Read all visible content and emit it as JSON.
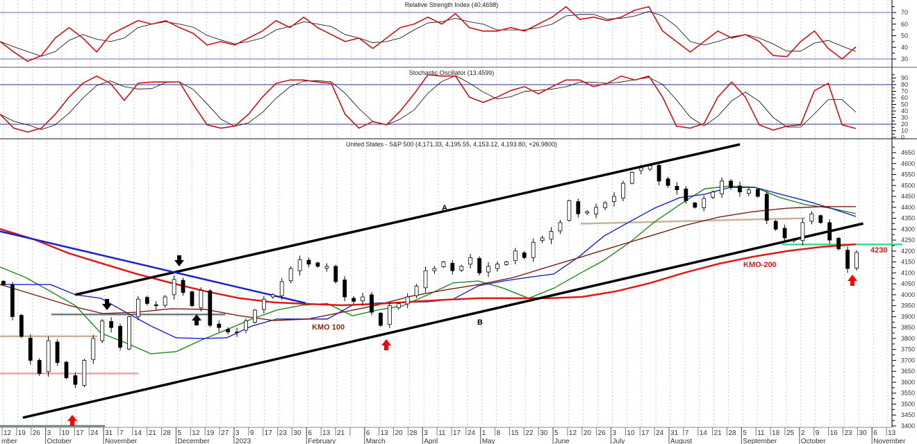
{
  "panels": {
    "rsi_title": "Relative Strength Index (40.4698)",
    "stoch_title": "Stochastic Oscillator (13.4599)",
    "price_title": "United States - S&P 500 (4,171.33, 4,195.55, 4,153.12, 4,193.80, +26.9800)"
  },
  "annotations": {
    "line_a": "A",
    "line_b": "B",
    "kmo100": "KMO 100",
    "kmo200": "KMO-200",
    "level": "4230"
  },
  "colors": {
    "up": "#ffffff",
    "down": "#000000",
    "ma20": "#1a8a1a",
    "ma50": "#1a22c8",
    "kmo100": "#7a1a10",
    "kmo200": "#e01818",
    "rsi": "#d01010",
    "signal": "#000000",
    "ref_rsi": "#8088c8",
    "ref_stoch": "#2a2f8a"
  },
  "chart_data": [
    {
      "type": "line",
      "title": "Relative Strength Index (40.4698)",
      "ylim": [
        20,
        80
      ],
      "yticks": [
        30,
        40,
        50,
        60,
        70
      ],
      "reference_lines": [
        70,
        30
      ],
      "series": [
        {
          "name": "RSI",
          "values": [
            45,
            36,
            28,
            33,
            48,
            57,
            48,
            36,
            51,
            57,
            63,
            60,
            63,
            57,
            52,
            42,
            45,
            42,
            48,
            54,
            63,
            57,
            66,
            57,
            51,
            45,
            48,
            39,
            48,
            57,
            60,
            66,
            60,
            69,
            57,
            54,
            54,
            57,
            54,
            60,
            66,
            75,
            64,
            66,
            63,
            66,
            72,
            75,
            54,
            45,
            36,
            45,
            54,
            48,
            51,
            45,
            33,
            32,
            45,
            54,
            39,
            30,
            40.47
          ]
        }
      ]
    },
    {
      "type": "line",
      "title": "Stochastic Oscillator (13.4599)",
      "ylim": [
        -5,
        100
      ],
      "yticks": [
        0,
        10,
        20,
        30,
        40,
        50,
        60,
        70,
        80,
        90
      ],
      "reference_lines": [
        80,
        20
      ],
      "series": [
        {
          "name": "%K",
          "values": [
            35,
            14,
            8,
            14,
            35,
            61,
            82,
            93,
            82,
            56,
            82,
            84,
            84,
            84,
            50,
            19,
            14,
            17,
            35,
            61,
            82,
            87,
            87,
            84,
            82,
            35,
            14,
            24,
            19,
            40,
            66,
            95,
            93,
            93,
            61,
            53,
            61,
            71,
            77,
            66,
            77,
            87,
            87,
            77,
            82,
            93,
            87,
            93,
            61,
            17,
            14,
            21,
            61,
            84,
            61,
            19,
            11,
            17,
            19,
            71,
            82,
            19,
            13.46
          ]
        }
      ]
    },
    {
      "type": "candlestick",
      "title": "United States - S&P 500",
      "ylim": [
        3375,
        4680
      ],
      "yticks": [
        3400,
        3450,
        3500,
        3550,
        3600,
        3650,
        3700,
        3750,
        3800,
        3850,
        3900,
        3950,
        4000,
        4050,
        4100,
        4150,
        4200,
        4250,
        4300,
        4350,
        4400,
        4450,
        4500,
        4550,
        4600,
        4650
      ],
      "last": {
        "open": 4171.33,
        "high": 4195.55,
        "low": 4153.12,
        "close": 4193.8,
        "change": 26.98
      },
      "closes": [
        4047,
        3900,
        3810,
        3700,
        3640,
        3790,
        3690,
        3620,
        3590,
        3700,
        3800,
        3880,
        3850,
        3760,
        3900,
        3980,
        3960,
        3950,
        3990,
        4070,
        4010,
        3950,
        4020,
        3860,
        3850,
        3830,
        3830,
        3880,
        3930,
        3980,
        4000,
        4060,
        4120,
        4160,
        4140,
        4130,
        4130,
        4060,
        3990,
        3970,
        3990,
        3920,
        3860,
        3950,
        3960,
        3990,
        4040,
        4110,
        4120,
        4150,
        4110,
        4130,
        4170,
        4100,
        4130,
        4140,
        4150,
        4200,
        4170,
        4240,
        4260,
        4290,
        4330,
        4430,
        4370,
        4380,
        4400,
        4420,
        4450,
        4510,
        4560,
        4580,
        4590,
        4520,
        4500,
        4480,
        4430,
        4400,
        4440,
        4470,
        4520,
        4490,
        4470,
        4480,
        4450,
        4340,
        4300,
        4260,
        4250,
        4330,
        4370,
        4330,
        4250,
        4210,
        4120,
        4194
      ],
      "moving_averages": [
        {
          "name": "MA20",
          "color_key": "ma20",
          "values": [
            4127,
            4080,
            4016,
            3950,
            3825,
            3780,
            3730,
            3740,
            3793,
            3840,
            3889,
            3930,
            3952,
            3960,
            3904,
            3930,
            3950,
            4000,
            4054,
            4063,
            4030,
            3984,
            4030,
            4095,
            4158,
            4238,
            4333,
            4412,
            4485,
            4497,
            4491,
            4444,
            4412,
            4396,
            4371
          ]
        },
        {
          "name": "MA50",
          "color_key": "ma50",
          "values": [
            4047,
            4047,
            4047,
            4000,
            3984,
            3920,
            3857,
            3803,
            3800,
            3803,
            3857,
            3889,
            3889,
            3889,
            3952,
            3962,
            3965,
            3968,
            3980,
            4041,
            4063,
            4080,
            4095,
            4174,
            4269,
            4333,
            4396,
            4444,
            4460,
            4491,
            4491,
            4460,
            4430,
            4396,
            4358
          ]
        },
        {
          "name": "KMO 100",
          "color_key": "kmo100",
          "values": [
            4047,
            4000,
            3952,
            3914,
            3920,
            3936,
            3933,
            3904,
            3882,
            3889,
            3920,
            3952,
            3993,
            4022,
            4047,
            4079,
            4127,
            4174,
            4222,
            4269,
            4317,
            4355,
            4380,
            4396,
            4403,
            4403
          ]
        },
        {
          "name": "KMO-200",
          "color_key": "kmo200",
          "values": [
            4301,
            4253,
            4190,
            4142,
            4095,
            4054,
            4016,
            3984,
            3965,
            3958,
            3952,
            3958,
            3968,
            3977,
            3984,
            3984,
            3984,
            3990,
            4016,
            4054,
            4101,
            4142,
            4174,
            4200,
            4219,
            4231
          ]
        }
      ],
      "trendlines": [
        {
          "name": "A",
          "color": "#000000",
          "from": [
            4.94,
            4000
          ],
          "to": [
            50.8,
            4688
          ]
        },
        {
          "name": "B",
          "color": "#000000",
          "from": [
            1.34,
            3438
          ],
          "to": [
            59.3,
            4326
          ]
        },
        {
          "name": "downtrend",
          "color": "#1a22c8",
          "from": [
            -0.3,
            4291
          ],
          "to": [
            20.84,
            3962
          ]
        }
      ],
      "levels": [
        {
          "color": "#6f7f80",
          "from": [
            3.3,
            3910
          ],
          "to": [
            15.3,
            3910
          ]
        },
        {
          "color": "#c8b49a",
          "from": [
            -0.3,
            3810
          ],
          "to": [
            6.5,
            3810
          ]
        },
        {
          "color": "#f0a0a8",
          "from": [
            -0.3,
            3640
          ],
          "to": [
            9.3,
            3640
          ]
        },
        {
          "color": "#6f7f80",
          "from": [
            -0.3,
            3400
          ],
          "to": [
            7,
            3400
          ]
        },
        {
          "color": "#c8b49a",
          "from": [
            39.8,
            4325
          ],
          "to": [
            55.3,
            4350
          ]
        },
        {
          "color": "#40d890",
          "from": [
            53.7,
            4230
          ],
          "to": [
            62,
            4230
          ]
        }
      ]
    }
  ],
  "xaxis": {
    "ticks": [
      "12",
      "19",
      "26",
      "3",
      "10",
      "17",
      "24",
      "31",
      "7",
      "14",
      "21",
      "28",
      "5",
      "12",
      "19",
      "27",
      "3",
      "9",
      "17",
      "23",
      "30",
      "6",
      "13",
      "21",
      "",
      "6",
      "13",
      "20",
      "28",
      "3",
      "11",
      "17",
      "24",
      "1",
      "8",
      "15",
      "22",
      "30",
      "5",
      "12",
      "20",
      "26",
      "3",
      "10",
      "17",
      "24",
      "31",
      "7",
      "14",
      "21",
      "28",
      "5",
      "11",
      "18",
      "25",
      "2",
      "9",
      "16",
      "23",
      "30",
      "6",
      "13"
    ],
    "months": [
      {
        "label": "mber",
        "tick": -0.3
      },
      {
        "label": "October",
        "tick": 3
      },
      {
        "label": "November",
        "tick": 7
      },
      {
        "label": "December",
        "tick": 12
      },
      {
        "label": "2023",
        "tick": 16
      },
      {
        "label": "February",
        "tick": 21
      },
      {
        "label": "March",
        "tick": 25
      },
      {
        "label": "April",
        "tick": 29
      },
      {
        "label": "May",
        "tick": 33
      },
      {
        "label": "June",
        "tick": 38
      },
      {
        "label": "July",
        "tick": 42
      },
      {
        "label": "August",
        "tick": 46
      },
      {
        "label": "September",
        "tick": 51
      },
      {
        "label": "October",
        "tick": 55
      },
      {
        "label": "November",
        "tick": 60
      }
    ]
  }
}
